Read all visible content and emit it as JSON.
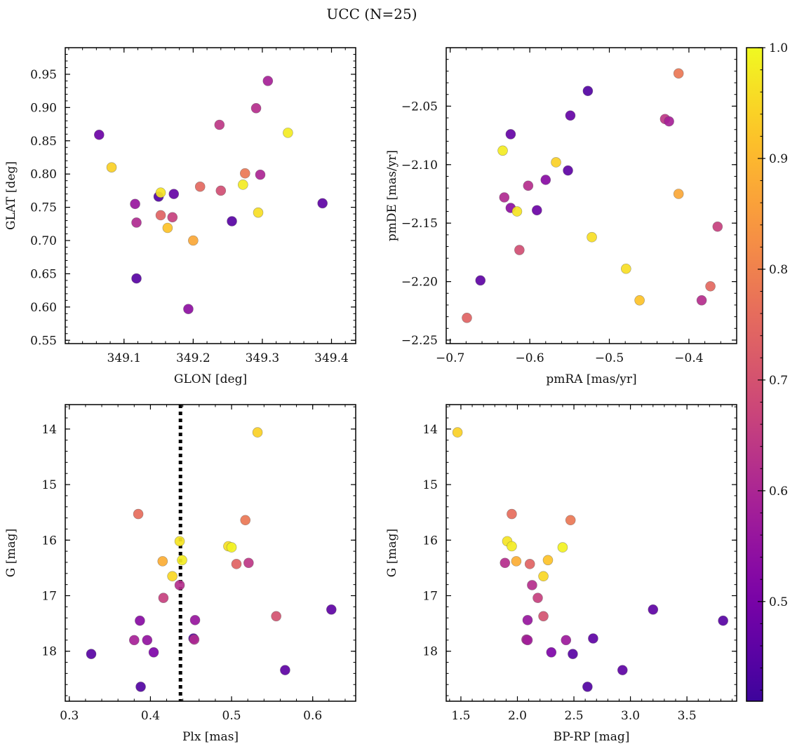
{
  "figure": {
    "title": "UCC (N=25)"
  },
  "colorbar": {
    "range": [
      0.41,
      1.0
    ],
    "ticks": [
      0.5,
      0.6,
      0.7,
      0.8,
      0.9,
      1.0
    ],
    "tick_labels": [
      "0.5",
      "0.6",
      "0.7",
      "0.8",
      "0.9",
      "1.0"
    ],
    "colormap": "plasma"
  },
  "chart_data": [
    {
      "type": "scatter",
      "xlabel": "GLON [deg]",
      "ylabel": "GLAT [deg]",
      "xlim": [
        349.015,
        349.435
      ],
      "ylim": [
        0.545,
        0.99
      ],
      "xticks": [
        349.1,
        349.2,
        349.3,
        349.4
      ],
      "xtick_labels": [
        "349.1",
        "349.2",
        "349.3",
        "349.4"
      ],
      "yticks": [
        0.55,
        0.6,
        0.65,
        0.7,
        0.75,
        0.8,
        0.85,
        0.9,
        0.95
      ],
      "ytick_labels": [
        "0.55",
        "0.60",
        "0.65",
        "0.70",
        "0.75",
        "0.80",
        "0.85",
        "0.90",
        "0.95"
      ],
      "points": [
        {
          "x": 349.064,
          "y": 0.859,
          "c": 0.48
        },
        {
          "x": 349.082,
          "y": 0.81,
          "c": 0.94
        },
        {
          "x": 349.116,
          "y": 0.755,
          "c": 0.56
        },
        {
          "x": 349.118,
          "y": 0.727,
          "c": 0.61
        },
        {
          "x": 349.118,
          "y": 0.643,
          "c": 0.45
        },
        {
          "x": 349.15,
          "y": 0.766,
          "c": 0.44
        },
        {
          "x": 349.153,
          "y": 0.772,
          "c": 0.97
        },
        {
          "x": 349.153,
          "y": 0.738,
          "c": 0.74
        },
        {
          "x": 349.163,
          "y": 0.719,
          "c": 0.92
        },
        {
          "x": 349.17,
          "y": 0.735,
          "c": 0.66
        },
        {
          "x": 349.172,
          "y": 0.77,
          "c": 0.47
        },
        {
          "x": 349.193,
          "y": 0.597,
          "c": 0.54
        },
        {
          "x": 349.2,
          "y": 0.7,
          "c": 0.87
        },
        {
          "x": 349.21,
          "y": 0.781,
          "c": 0.75
        },
        {
          "x": 349.238,
          "y": 0.874,
          "c": 0.64
        },
        {
          "x": 349.24,
          "y": 0.775,
          "c": 0.69
        },
        {
          "x": 349.256,
          "y": 0.729,
          "c": 0.45
        },
        {
          "x": 349.272,
          "y": 0.784,
          "c": 0.98
        },
        {
          "x": 349.275,
          "y": 0.801,
          "c": 0.78
        },
        {
          "x": 349.291,
          "y": 0.899,
          "c": 0.62
        },
        {
          "x": 349.294,
          "y": 0.742,
          "c": 0.96
        },
        {
          "x": 349.297,
          "y": 0.799,
          "c": 0.6
        },
        {
          "x": 349.308,
          "y": 0.94,
          "c": 0.59
        },
        {
          "x": 349.337,
          "y": 0.862,
          "c": 0.98
        },
        {
          "x": 349.387,
          "y": 0.756,
          "c": 0.46
        }
      ]
    },
    {
      "type": "scatter",
      "xlabel": "pmRA [mas/yr]",
      "ylabel": "pmDE [mas/yr]",
      "xlim": [
        -0.705,
        -0.34
      ],
      "ylim": [
        -2.253,
        -2.0
      ],
      "xticks": [
        -0.7,
        -0.6,
        -0.5,
        -0.4
      ],
      "xtick_labels": [
        "−0.7",
        "−0.6",
        "−0.5",
        "−0.4"
      ],
      "yticks": [
        -2.25,
        -2.2,
        -2.15,
        -2.1,
        -2.05
      ],
      "ytick_labels": [
        "−2.25",
        "−2.20",
        "−2.15",
        "−2.10",
        "−2.05"
      ],
      "points": [
        {
          "x": -0.679,
          "y": -2.231,
          "c": 0.74
        },
        {
          "x": -0.662,
          "y": -2.199,
          "c": 0.46
        },
        {
          "x": -0.634,
          "y": -2.088,
          "c": 0.98
        },
        {
          "x": -0.632,
          "y": -2.128,
          "c": 0.61
        },
        {
          "x": -0.624,
          "y": -2.074,
          "c": 0.47
        },
        {
          "x": -0.624,
          "y": -2.137,
          "c": 0.54
        },
        {
          "x": -0.616,
          "y": -2.14,
          "c": 0.97
        },
        {
          "x": -0.613,
          "y": -2.173,
          "c": 0.69
        },
        {
          "x": -0.602,
          "y": -2.118,
          "c": 0.62
        },
        {
          "x": -0.591,
          "y": -2.139,
          "c": 0.48
        },
        {
          "x": -0.58,
          "y": -2.113,
          "c": 0.53
        },
        {
          "x": -0.567,
          "y": -2.098,
          "c": 0.94
        },
        {
          "x": -0.552,
          "y": -2.105,
          "c": 0.46
        },
        {
          "x": -0.549,
          "y": -2.058,
          "c": 0.47
        },
        {
          "x": -0.527,
          "y": -2.037,
          "c": 0.44
        },
        {
          "x": -0.522,
          "y": -2.162,
          "c": 0.96
        },
        {
          "x": -0.479,
          "y": -2.189,
          "c": 0.96
        },
        {
          "x": -0.462,
          "y": -2.216,
          "c": 0.92
        },
        {
          "x": -0.43,
          "y": -2.061,
          "c": 0.64
        },
        {
          "x": -0.425,
          "y": -2.063,
          "c": 0.59
        },
        {
          "x": -0.413,
          "y": -2.022,
          "c": 0.78
        },
        {
          "x": -0.413,
          "y": -2.125,
          "c": 0.87
        },
        {
          "x": -0.384,
          "y": -2.216,
          "c": 0.62
        },
        {
          "x": -0.373,
          "y": -2.204,
          "c": 0.75
        },
        {
          "x": -0.364,
          "y": -2.153,
          "c": 0.66
        }
      ]
    },
    {
      "type": "scatter",
      "xlabel": "Plx [mas]",
      "ylabel": "G [mag]",
      "xlim": [
        0.295,
        0.653
      ],
      "ylim": [
        18.9,
        13.56
      ],
      "xticks": [
        0.3,
        0.4,
        0.5,
        0.6
      ],
      "xtick_labels": [
        "0.3",
        "0.4",
        "0.5",
        "0.6"
      ],
      "yticks": [
        14,
        15,
        16,
        17,
        18
      ],
      "ytick_labels": [
        "14",
        "15",
        "16",
        "17",
        "18"
      ],
      "vline": 0.437,
      "points": [
        {
          "x": 0.327,
          "y": 18.05,
          "c": 0.45
        },
        {
          "x": 0.38,
          "y": 17.8,
          "c": 0.59
        },
        {
          "x": 0.385,
          "y": 15.53,
          "c": 0.76
        },
        {
          "x": 0.387,
          "y": 17.45,
          "c": 0.53
        },
        {
          "x": 0.388,
          "y": 18.64,
          "c": 0.44
        },
        {
          "x": 0.396,
          "y": 17.8,
          "c": 0.55
        },
        {
          "x": 0.404,
          "y": 18.02,
          "c": 0.51
        },
        {
          "x": 0.415,
          "y": 16.38,
          "c": 0.88
        },
        {
          "x": 0.416,
          "y": 17.04,
          "c": 0.66
        },
        {
          "x": 0.427,
          "y": 16.65,
          "c": 0.95
        },
        {
          "x": 0.436,
          "y": 16.02,
          "c": 0.97
        },
        {
          "x": 0.436,
          "y": 16.81,
          "c": 0.62
        },
        {
          "x": 0.439,
          "y": 16.36,
          "c": 0.98
        },
        {
          "x": 0.453,
          "y": 17.77,
          "c": 0.45
        },
        {
          "x": 0.454,
          "y": 17.79,
          "c": 0.61
        },
        {
          "x": 0.455,
          "y": 17.44,
          "c": 0.56
        },
        {
          "x": 0.496,
          "y": 16.11,
          "c": 0.96
        },
        {
          "x": 0.5,
          "y": 16.13,
          "c": 0.99
        },
        {
          "x": 0.506,
          "y": 16.43,
          "c": 0.74
        },
        {
          "x": 0.517,
          "y": 15.64,
          "c": 0.78
        },
        {
          "x": 0.521,
          "y": 16.41,
          "c": 0.64
        },
        {
          "x": 0.532,
          "y": 14.06,
          "c": 0.94
        },
        {
          "x": 0.555,
          "y": 17.37,
          "c": 0.7
        },
        {
          "x": 0.566,
          "y": 18.34,
          "c": 0.46
        },
        {
          "x": 0.623,
          "y": 17.25,
          "c": 0.46
        }
      ]
    },
    {
      "type": "scatter",
      "xlabel": "BP-RP [mag]",
      "ylabel": "G [mag]",
      "xlim": [
        1.37,
        3.94
      ],
      "ylim": [
        18.9,
        13.56
      ],
      "xticks": [
        1.5,
        2.0,
        2.5,
        3.0,
        3.5
      ],
      "xtick_labels": [
        "1.5",
        "2.0",
        "2.5",
        "3.0",
        "3.5"
      ],
      "yticks": [
        14,
        15,
        16,
        17,
        18
      ],
      "ytick_labels": [
        "14",
        "15",
        "16",
        "17",
        "18"
      ],
      "points": [
        {
          "x": 1.47,
          "y": 14.06,
          "c": 0.94
        },
        {
          "x": 1.89,
          "y": 16.41,
          "c": 0.62
        },
        {
          "x": 1.91,
          "y": 16.02,
          "c": 0.97
        },
        {
          "x": 1.95,
          "y": 15.53,
          "c": 0.76
        },
        {
          "x": 1.95,
          "y": 16.11,
          "c": 0.98
        },
        {
          "x": 1.99,
          "y": 16.38,
          "c": 0.88
        },
        {
          "x": 2.08,
          "y": 17.79,
          "c": 0.6
        },
        {
          "x": 2.09,
          "y": 17.8,
          "c": 0.58
        },
        {
          "x": 2.09,
          "y": 17.44,
          "c": 0.56
        },
        {
          "x": 2.11,
          "y": 16.43,
          "c": 0.74
        },
        {
          "x": 2.13,
          "y": 16.81,
          "c": 0.62
        },
        {
          "x": 2.18,
          "y": 17.04,
          "c": 0.66
        },
        {
          "x": 2.23,
          "y": 17.37,
          "c": 0.7
        },
        {
          "x": 2.23,
          "y": 16.65,
          "c": 0.95
        },
        {
          "x": 2.27,
          "y": 16.36,
          "c": 0.92
        },
        {
          "x": 2.3,
          "y": 18.02,
          "c": 0.51
        },
        {
          "x": 2.4,
          "y": 16.13,
          "c": 0.99
        },
        {
          "x": 2.43,
          "y": 17.8,
          "c": 0.57
        },
        {
          "x": 2.47,
          "y": 15.64,
          "c": 0.78
        },
        {
          "x": 2.49,
          "y": 18.05,
          "c": 0.45
        },
        {
          "x": 2.62,
          "y": 18.64,
          "c": 0.44
        },
        {
          "x": 2.67,
          "y": 17.77,
          "c": 0.46
        },
        {
          "x": 2.93,
          "y": 18.34,
          "c": 0.46
        },
        {
          "x": 3.2,
          "y": 17.25,
          "c": 0.46
        },
        {
          "x": 3.82,
          "y": 17.45,
          "c": 0.45
        }
      ]
    }
  ]
}
